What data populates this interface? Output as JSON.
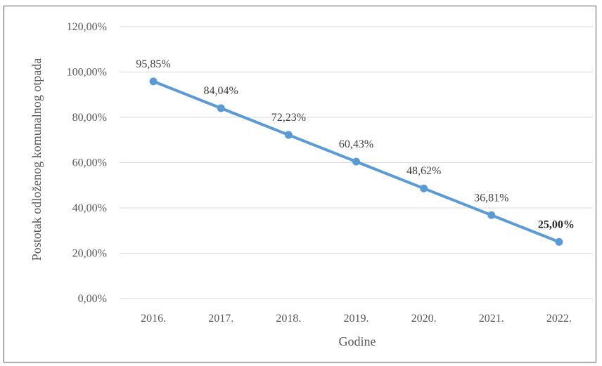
{
  "chart_data": {
    "type": "line",
    "title": "",
    "xlabel": "Godine",
    "ylabel": "Postotak odloženog komunalnog otpada",
    "categories": [
      "2016.",
      "2017.",
      "2018.",
      "2019.",
      "2020.",
      "2021.",
      "2022."
    ],
    "series": [
      {
        "values": [
          95.85,
          84.04,
          72.23,
          60.43,
          48.62,
          36.81,
          25.0
        ],
        "labels": [
          "95,85%",
          "84,04%",
          "72,23%",
          "60,43%",
          "48,62%",
          "36,81%",
          "25,00%"
        ],
        "color": "#5b9bd5"
      }
    ],
    "ylim": [
      0,
      120
    ],
    "yticks": [
      0,
      20,
      40,
      60,
      80,
      100,
      120
    ],
    "ytick_labels": [
      "0,00%",
      "20,00%",
      "40,00%",
      "60,00%",
      "80,00%",
      "100,00%",
      "120,00%"
    ],
    "grid": "horizontal",
    "grid_color": "#d9d9d9",
    "emphasized_label_index": 6,
    "legend": "none"
  }
}
